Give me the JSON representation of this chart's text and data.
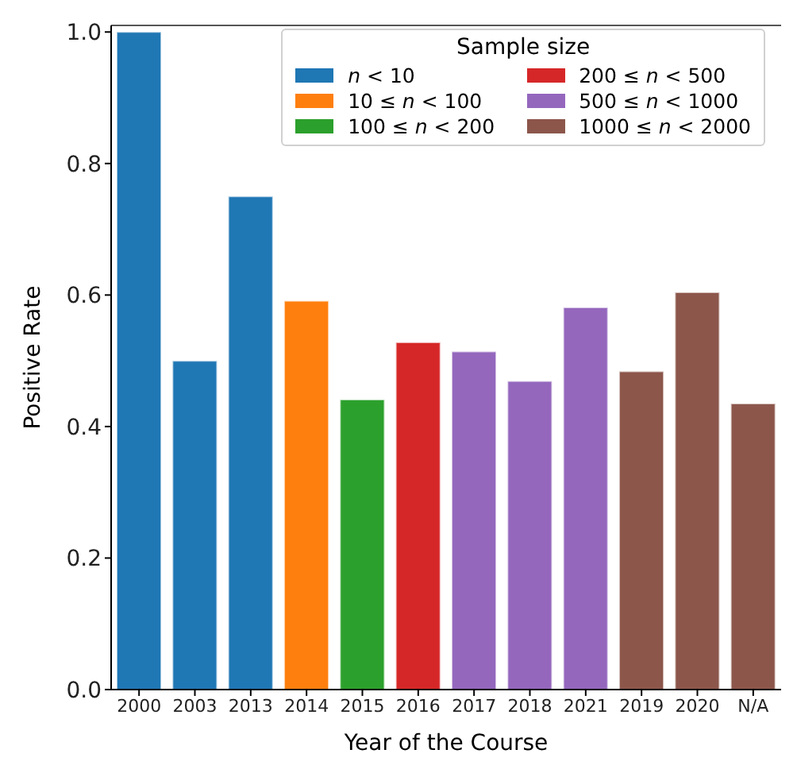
{
  "chart_data": {
    "type": "bar",
    "xlabel": "Year of the Course",
    "ylabel": "Positive Rate",
    "legend_title": "Sample size",
    "categories": [
      "2000",
      "2003",
      "2013",
      "2014",
      "2015",
      "2016",
      "2017",
      "2018",
      "2021",
      "2019",
      "2020",
      "N/A"
    ],
    "stacked": true,
    "series": [
      {
        "name": "n < 10",
        "color": "#1f77b4",
        "values": [
          1.0,
          0.5,
          0.75,
          null,
          null,
          null,
          null,
          null,
          null,
          null,
          null,
          null
        ]
      },
      {
        "name": "10 ≤ n < 100",
        "color": "#ff7f0e",
        "values": [
          null,
          null,
          null,
          0.591,
          null,
          null,
          null,
          null,
          null,
          null,
          null,
          null
        ]
      },
      {
        "name": "100 ≤ n < 200",
        "color": "#2ca02c",
        "values": [
          null,
          null,
          null,
          null,
          0.441,
          null,
          null,
          null,
          null,
          null,
          null,
          null
        ]
      },
      {
        "name": "200 ≤ n < 500",
        "color": "#d62728",
        "values": [
          null,
          null,
          null,
          null,
          null,
          0.528,
          null,
          null,
          null,
          null,
          null,
          null
        ]
      },
      {
        "name": "500 ≤ n < 1000",
        "color": "#9467bd",
        "values": [
          null,
          null,
          null,
          null,
          null,
          null,
          0.514,
          0.469,
          0.581,
          null,
          null,
          null
        ]
      },
      {
        "name": "1000 ≤ n < 2000",
        "color": "#8c564b",
        "values": [
          null,
          null,
          null,
          null,
          null,
          null,
          null,
          null,
          null,
          0.484,
          0.604,
          0.435
        ]
      }
    ],
    "ylim": [
      0,
      1.01
    ],
    "yticks": [
      {
        "value": 0,
        "label": "0.0"
      },
      0.2,
      0.4,
      0.6,
      0.8,
      {
        "value": 1,
        "label": "1.0"
      }
    ],
    "grid": false,
    "legend": "top right"
  }
}
